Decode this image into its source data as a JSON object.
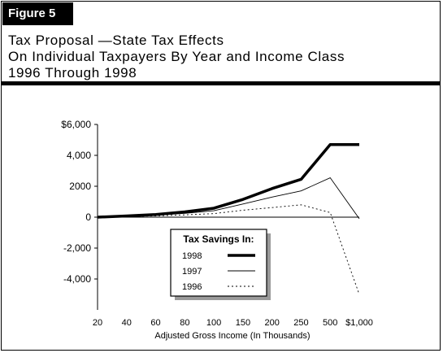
{
  "figure": {
    "label": "Figure 5"
  },
  "title_lines": [
    "Tax Proposal —State Tax Effects",
    "On Individual Taxpayers By Year and Income Class",
    "1996 Through 1998"
  ],
  "chart_data": {
    "type": "line",
    "title": "",
    "xlabel": "Adjusted Gross Income (In Thousands)",
    "ylabel": "",
    "categories": [
      "20",
      "40",
      "60",
      "80",
      "100",
      "150",
      "200",
      "250",
      "500",
      "$1,000"
    ],
    "ylim": [
      -5000,
      6000
    ],
    "yticks": [
      6000,
      4000,
      2000,
      0,
      -2000,
      -4000
    ],
    "ytick_labels": [
      "$6,000",
      "4,000",
      "2000",
      "0",
      "-2,000",
      "-4,000"
    ],
    "legend_title": "Tax Savings In:",
    "legend_position": "lower-center",
    "grid": false,
    "series": [
      {
        "name": "1998",
        "style": "thick",
        "values": [
          0,
          80,
          170,
          340,
          580,
          1150,
          1850,
          2450,
          4700,
          4700
        ]
      },
      {
        "name": "1997",
        "style": "thin",
        "values": [
          0,
          60,
          130,
          250,
          420,
          850,
          1300,
          1700,
          2550,
          -100
        ]
      },
      {
        "name": "1996",
        "style": "dotted",
        "values": [
          0,
          40,
          80,
          150,
          230,
          450,
          620,
          800,
          300,
          -5000
        ]
      }
    ]
  }
}
